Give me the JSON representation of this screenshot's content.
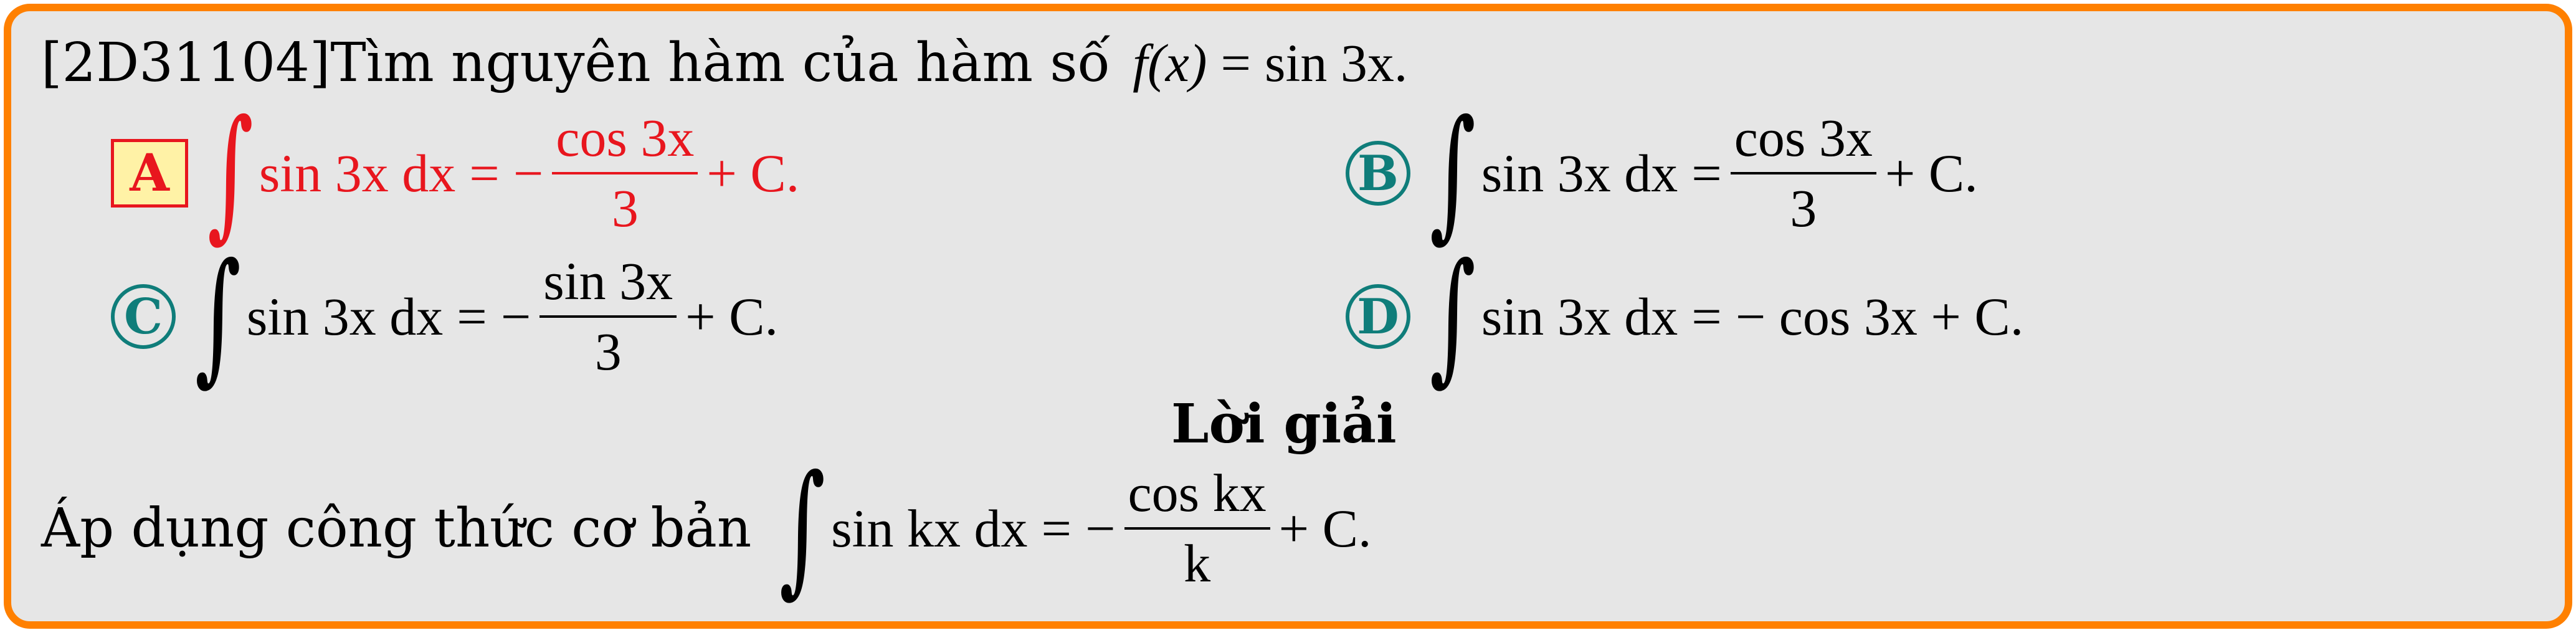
{
  "question": {
    "code": "[2D31104]",
    "prompt": "Tìm nguyên hàm của hàm số",
    "func_lhs": "f(x)",
    "func_eq": "=",
    "func_rhs": "sin 3x",
    "period": "."
  },
  "options": [
    {
      "letter": "A",
      "correct": true,
      "integrand": "sin 3x dx",
      "rhs_sign": "−",
      "numerator": "cos 3x",
      "denominator": "3",
      "tail": "+ C."
    },
    {
      "letter": "B",
      "correct": false,
      "integrand": "sin 3x dx",
      "rhs_sign": "",
      "numerator": "cos 3x",
      "denominator": "3",
      "tail": "+ C."
    },
    {
      "letter": "C",
      "correct": false,
      "integrand": "sin 3x dx",
      "rhs_sign": "−",
      "numerator": "sin 3x",
      "denominator": "3",
      "tail": "+ C."
    },
    {
      "letter": "D",
      "correct": false,
      "integrand": "sin 3x dx",
      "rhs_expr": "− cos 3x + C."
    }
  ],
  "solution": {
    "heading": "Lời giải",
    "intro": "Áp dụng công thức cơ bản",
    "integrand": "sin kx dx",
    "rhs_sign": "−",
    "numerator": "cos kx",
    "denominator": "k",
    "tail": "+ C."
  },
  "symbols": {
    "integral": "∫",
    "equals": "="
  },
  "colors": {
    "border": "#ff8000",
    "background": "#e6e6e6",
    "correct": "#e8161e",
    "option_badge": "#0f7d7a",
    "correct_badge_fill": "#fff2a6"
  }
}
